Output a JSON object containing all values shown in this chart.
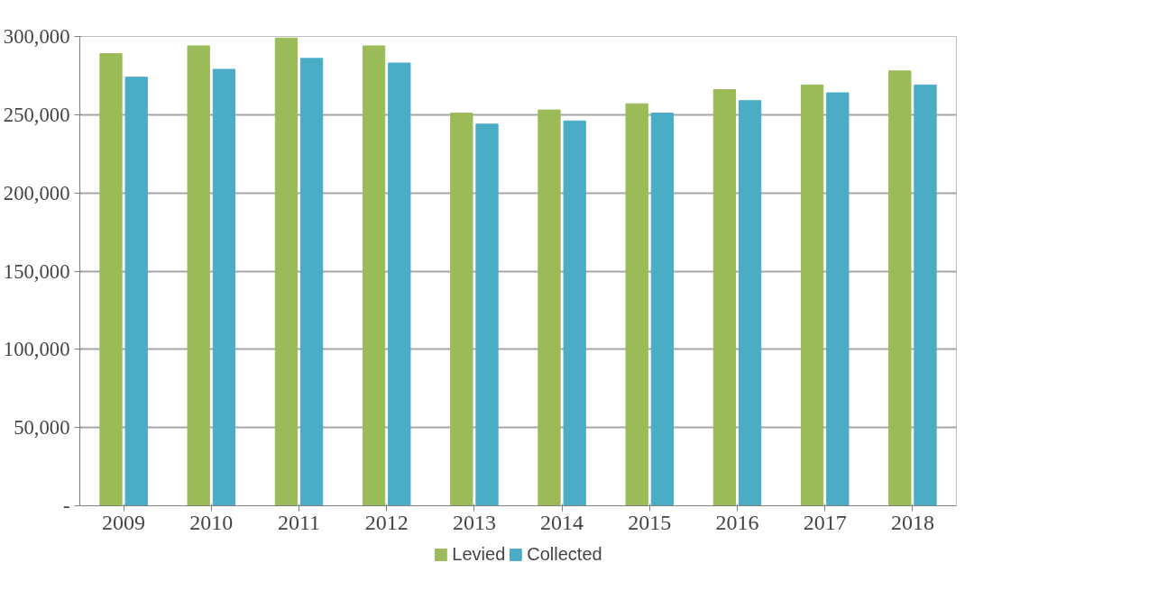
{
  "chart_data": {
    "type": "bar",
    "categories": [
      "2009",
      "2010",
      "2011",
      "2012",
      "2013",
      "2014",
      "2015",
      "2016",
      "2017",
      "2018"
    ],
    "series": [
      {
        "name": "Levied",
        "color": "#9bbb59",
        "values": [
          289000,
          294000,
          299000,
          294000,
          251000,
          253000,
          257000,
          266000,
          269000,
          278000
        ]
      },
      {
        "name": "Collected",
        "color": "#4bacc6",
        "values": [
          274000,
          279000,
          286000,
          283000,
          244000,
          246000,
          251000,
          259000,
          264000,
          269000
        ]
      }
    ],
    "ylim": [
      0,
      300000
    ],
    "yticks": [
      {
        "value": 0,
        "label": "-"
      },
      {
        "value": 50000,
        "label": "50,000"
      },
      {
        "value": 100000,
        "label": "100,000"
      },
      {
        "value": 150000,
        "label": "150,000"
      },
      {
        "value": 200000,
        "label": "200,000"
      },
      {
        "value": 250000,
        "label": "250,000"
      },
      {
        "value": 300000,
        "label": "300,000"
      }
    ],
    "grid": "y",
    "legend": "bottom"
  }
}
